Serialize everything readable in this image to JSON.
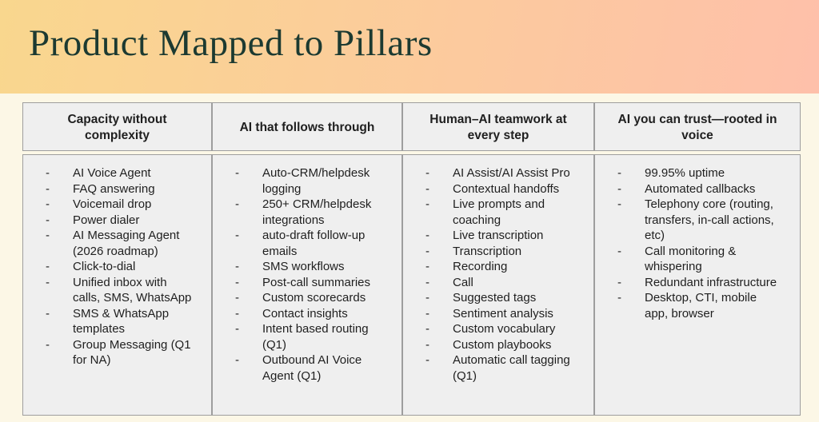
{
  "title": "Product Mapped to Pillars",
  "colors": {
    "banner_gradient_start": "#f9d78e",
    "banner_gradient_end": "#fec0aa",
    "page_background": "#fcf7e6",
    "title_text": "#1c3a31",
    "table_cell_background": "#efefef",
    "table_border": "#9e9e9e",
    "body_text": "#1f1f1f"
  },
  "table": {
    "bullet_marker": "-",
    "columns": [
      {
        "header": "Capacity without complexity",
        "items": [
          "AI Voice Agent",
          "FAQ answering",
          "Voicemail drop",
          "Power dialer",
          "AI Messaging Agent (2026 roadmap)",
          "Click-to-dial",
          "Unified inbox with calls, SMS, WhatsApp",
          "SMS & WhatsApp templates",
          "Group Messaging (Q1 for NA)"
        ]
      },
      {
        "header": "AI that follows through",
        "items": [
          "Auto-CRM/helpdesk logging",
          "250+ CRM/helpdesk integrations",
          "auto-draft follow-up emails",
          "SMS workflows",
          "Post-call summaries",
          "Custom scorecards",
          "Contact insights",
          "Intent based routing (Q1)",
          "Outbound AI Voice Agent (Q1)"
        ]
      },
      {
        "header": "Human–AI teamwork at every step",
        "items": [
          "AI Assist/AI Assist Pro",
          "Contextual handoffs",
          "Live prompts and coaching",
          "Live transcription",
          "Transcription",
          "Recording",
          "Call",
          "Suggested tags",
          "Sentiment analysis",
          "Custom vocabulary",
          "Custom playbooks",
          "Automatic call tagging (Q1)"
        ]
      },
      {
        "header": "AI you can trust—rooted in voice",
        "items": [
          "99.95% uptime",
          "Automated callbacks",
          "Telephony core (routing, transfers, in-call actions, etc)",
          "Call monitoring & whispering",
          "Redundant infrastructure",
          "Desktop, CTI, mobile app, browser"
        ]
      }
    ]
  }
}
